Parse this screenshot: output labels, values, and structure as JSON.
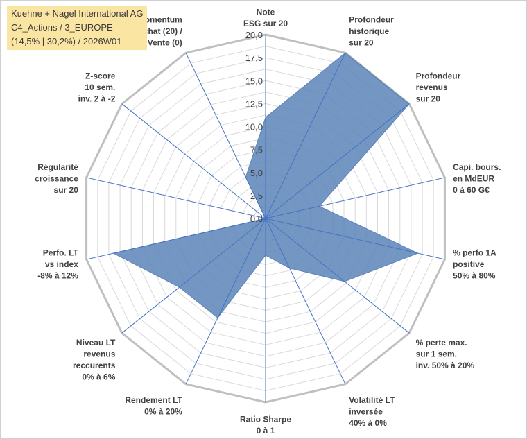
{
  "header": {
    "title_lines": [
      "Kuehne + Nagel International AG",
      "C4_Actions / 3_EUROPE",
      "(14,5% | 30,2%) / 2026W01"
    ]
  },
  "chart_data": {
    "type": "radar",
    "categories": [
      [
        "Note",
        "ESG sur 20"
      ],
      [
        "Profondeur",
        "historique",
        "sur 20"
      ],
      [
        "Profondeur",
        "revenus",
        "sur 20"
      ],
      [
        "Capi. bours.",
        "en MdEUR",
        "0 à 60 G€"
      ],
      [
        "% perfo 1A",
        "positive",
        "50% à 80%"
      ],
      [
        "% perte max.",
        "sur 1 sem.",
        "inv. 50% à 20%"
      ],
      [
        "Volatilité LT",
        "inversée",
        "40% à 0%"
      ],
      [
        "Ratio Sharpe",
        "0 à 1"
      ],
      [
        "Rendement LT",
        "0% à 20%"
      ],
      [
        "Niveau LT",
        "revenus",
        "reccurents",
        "0% à 6%"
      ],
      [
        "Perfo. LT",
        "vs index",
        "-8% à 12%"
      ],
      [
        "Régularité",
        "croissance",
        "sur 20"
      ],
      [
        "Z-score",
        "10 sem.",
        "inv. 2 à -2"
      ],
      [
        "Momentum",
        "Achat (20) /",
        "Vente (0)"
      ]
    ],
    "series": [
      {
        "values": [
          11,
          20,
          20,
          6,
          17,
          11,
          6,
          4,
          12,
          12,
          17,
          0,
          0,
          5
        ]
      }
    ],
    "rlim": [
      0,
      20
    ],
    "ticks": [
      "0,0",
      "2,5",
      "5,0",
      "7,5",
      "10,0",
      "12,5",
      "15,0",
      "17,5",
      "20,0"
    ],
    "tick_values": [
      0,
      2.5,
      5,
      7.5,
      10,
      12.5,
      15,
      17.5,
      20
    ],
    "grid": true,
    "colors": {
      "fill": "#5b84b9",
      "spoke": "#4472c4",
      "grid": "#d9d9d9",
      "outer_ring": "#bfbfbf",
      "title_bg": "#fbe5a3"
    }
  }
}
